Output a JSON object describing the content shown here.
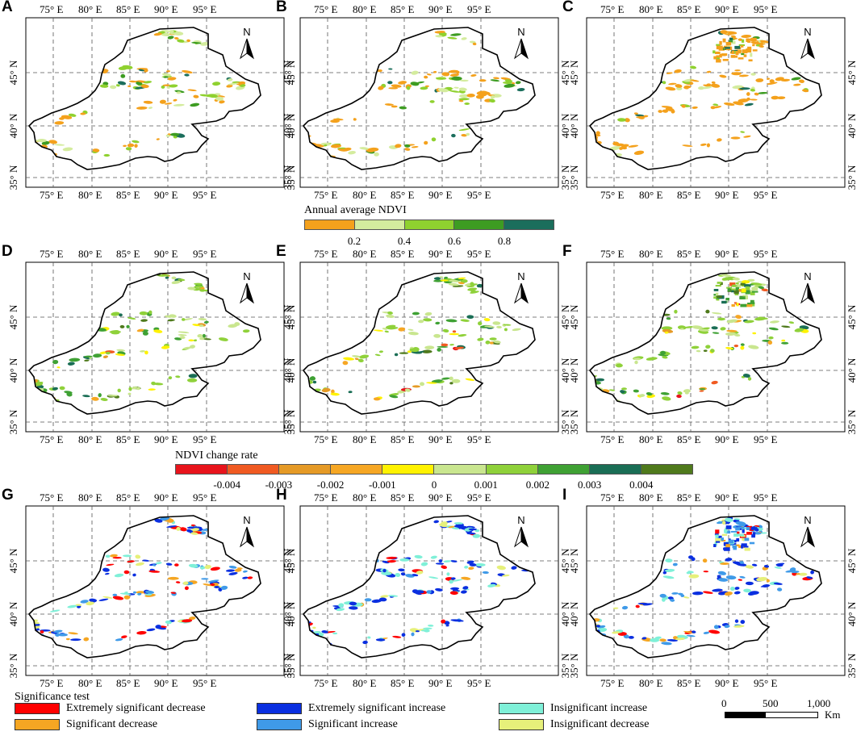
{
  "panels": [
    {
      "label": "A",
      "variant": "ndvi_mean_2000",
      "palette": "ndvi"
    },
    {
      "label": "B",
      "variant": "ndvi_mean_2010",
      "palette": "ndvi"
    },
    {
      "label": "C",
      "variant": "ndvi_mean_2020",
      "palette": "ndvi"
    },
    {
      "label": "D",
      "variant": "rate_1",
      "palette": "rate"
    },
    {
      "label": "E",
      "variant": "rate_2",
      "palette": "rate"
    },
    {
      "label": "F",
      "variant": "rate_3",
      "palette": "rate"
    },
    {
      "label": "G",
      "variant": "sig_1",
      "palette": "sig"
    },
    {
      "label": "H",
      "variant": "sig_2",
      "palette": "sig"
    },
    {
      "label": "I",
      "variant": "sig_3",
      "palette": "sig"
    }
  ],
  "axes": {
    "lon_ticks": [
      "75° E",
      "80° E",
      "85° E",
      "90° E",
      "95° E"
    ],
    "lat_ticks": [
      "45° N",
      "40° N",
      "35° N"
    ],
    "north_label": "N"
  },
  "ndvi_legend": {
    "title": "Annual average NDVI",
    "colors": [
      "#f4a11c",
      "#d4ec9e",
      "#8fd12f",
      "#3d9c22",
      "#1b6e5c"
    ],
    "ticks": [
      "0.2",
      "0.4",
      "0.6",
      "0.8"
    ]
  },
  "rate_legend": {
    "title": "NDVI change rate",
    "colors": [
      "#e8141c",
      "#f05a22",
      "#e59a26",
      "#f6a724",
      "#fff200",
      "#c9e68f",
      "#8fd13a",
      "#3fa134",
      "#1a6e55",
      "#4f7a1c"
    ],
    "ticks": [
      "-0.004",
      "-0.003",
      "-0.002",
      "-0.001",
      "0",
      "0.001",
      "0.002",
      "0.003",
      "0.004"
    ]
  },
  "sig_legend": {
    "title": "Significance test",
    "items": [
      {
        "label": "Extremely significant decrease",
        "color": "#ff0000"
      },
      {
        "label": "Significant decrease",
        "color": "#f5a623"
      },
      {
        "label": "Extremely significant increase",
        "color": "#0a2fe0"
      },
      {
        "label": "Significant increase",
        "color": "#3f9ae8"
      },
      {
        "label": "Insignificant increase",
        "color": "#7ff0d8"
      },
      {
        "label": "Insignificant decrease",
        "color": "#e6f07a"
      }
    ]
  },
  "scale_bar": {
    "labels": [
      "0",
      "500",
      "1,000"
    ],
    "unit": "Km"
  }
}
